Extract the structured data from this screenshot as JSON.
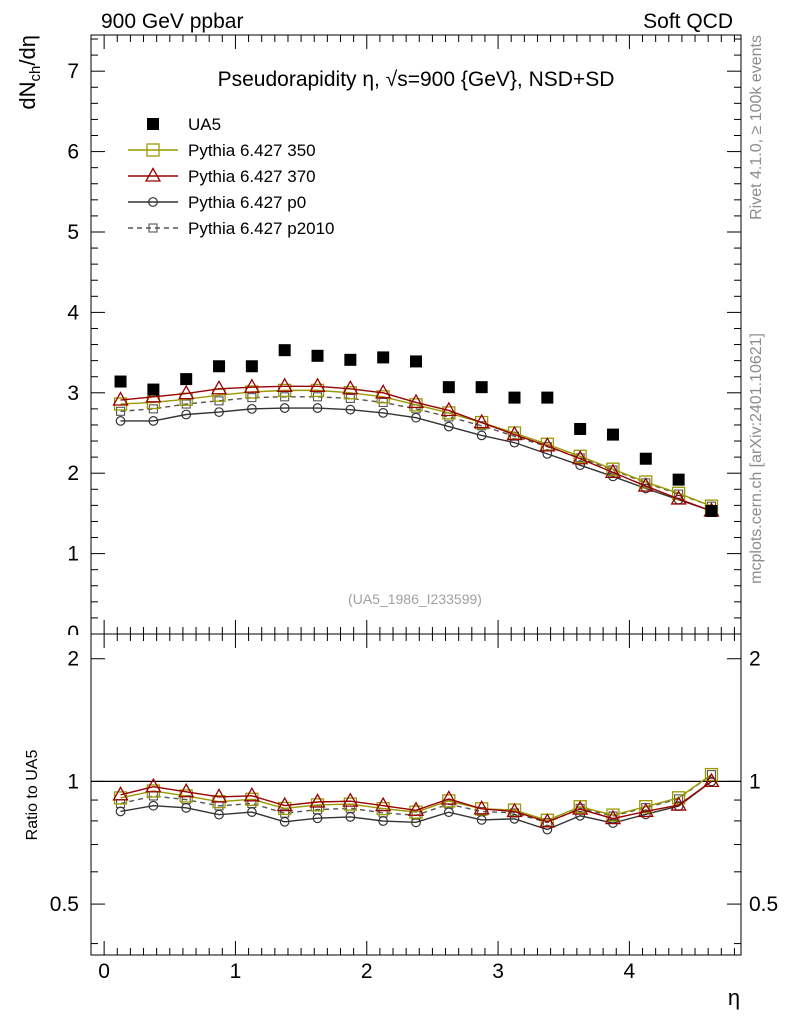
{
  "header": {
    "left": "900 GeV ppbar",
    "right": "Soft QCD"
  },
  "side_labels": {
    "top": "Rivet 4.1.0, ≥ 100k events",
    "bottom": "mcplots.cern.ch [arXiv:2401.10621]"
  },
  "chart_data": {
    "type": "line",
    "title": "Pseudorapidity η, √s=900 {GeV}, NSD+SD",
    "watermark": "(UA5_1986_I233599)",
    "xlabel": "η",
    "ylabel_main": "dN_ch/dη",
    "ylabel_ratio": "Ratio to UA5",
    "xlim": [
      -0.1,
      4.85
    ],
    "ylim_main": [
      0,
      7.45
    ],
    "ylim_ratio": [
      0.375,
      2.3
    ],
    "ratio_scale": "log",
    "x_ticks": [
      "0",
      "1",
      "2",
      "3",
      "4"
    ],
    "y_ticks_main": [
      "1",
      "2",
      "3",
      "4",
      "5",
      "6",
      "7"
    ],
    "y_ticks_ratio": [
      "0.5",
      "1",
      "2"
    ],
    "x": [
      0.125,
      0.375,
      0.625,
      0.875,
      1.125,
      1.375,
      1.625,
      1.875,
      2.125,
      2.375,
      2.625,
      2.875,
      3.125,
      3.375,
      3.625,
      3.875,
      4.125,
      4.375,
      4.625
    ],
    "data": {
      "name": "UA5",
      "values": [
        3.14,
        3.04,
        3.17,
        3.33,
        3.33,
        3.53,
        3.46,
        3.41,
        3.44,
        3.39,
        3.07,
        3.07,
        2.94,
        2.94,
        2.55,
        2.48,
        2.18,
        1.92,
        1.53
      ]
    },
    "series": [
      {
        "name": "Pythia 6.427 350",
        "color": "#999900",
        "marker": "square",
        "dashed": false,
        "values": [
          2.86,
          2.88,
          2.92,
          2.97,
          3.01,
          3.03,
          3.03,
          3.0,
          2.95,
          2.85,
          2.75,
          2.63,
          2.5,
          2.36,
          2.21,
          2.05,
          1.89,
          1.75,
          1.59
        ]
      },
      {
        "name": "Pythia 6.427 370",
        "color": "#990000",
        "marker": "triangle",
        "dashed": false,
        "values": [
          2.91,
          2.95,
          2.99,
          3.05,
          3.07,
          3.08,
          3.08,
          3.05,
          3.0,
          2.88,
          2.78,
          2.63,
          2.48,
          2.34,
          2.18,
          2.01,
          1.84,
          1.68,
          1.53
        ]
      },
      {
        "name": "Pythia 6.427 p0",
        "color": "#333333",
        "marker": "circle",
        "dashed": false,
        "values": [
          2.65,
          2.65,
          2.73,
          2.76,
          2.8,
          2.81,
          2.81,
          2.79,
          2.75,
          2.69,
          2.58,
          2.47,
          2.38,
          2.24,
          2.1,
          1.96,
          1.81,
          1.67,
          1.53
        ]
      },
      {
        "name": "Pythia 6.427 p2010",
        "color": "#555555",
        "marker": "square-small",
        "dashed": true,
        "values": [
          2.77,
          2.8,
          2.86,
          2.9,
          2.94,
          2.95,
          2.95,
          2.93,
          2.88,
          2.8,
          2.7,
          2.59,
          2.46,
          2.33,
          2.19,
          2.04,
          1.88,
          1.74,
          1.59
        ]
      }
    ]
  }
}
